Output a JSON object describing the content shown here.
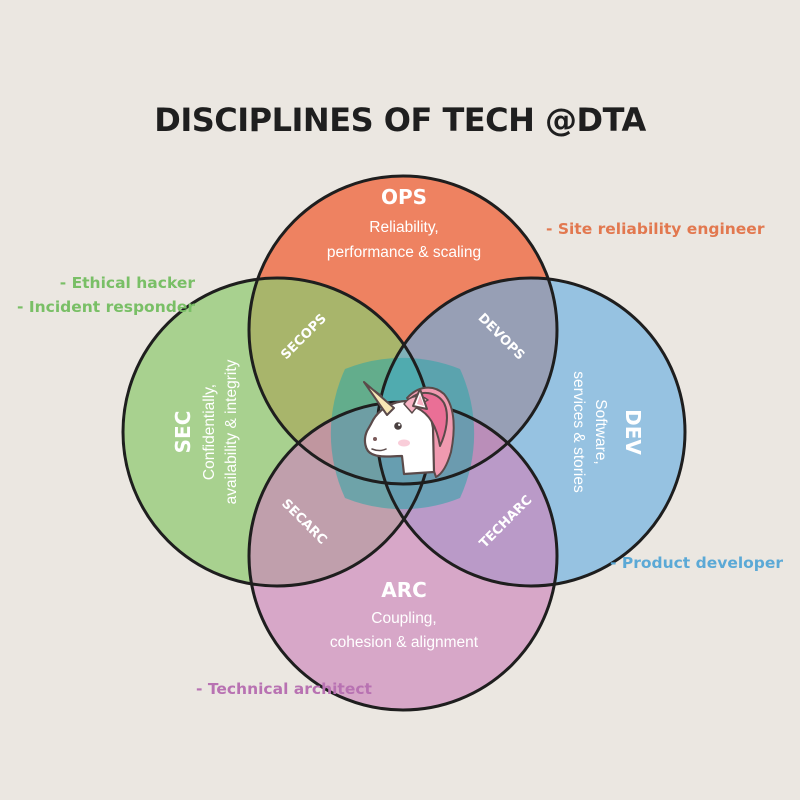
{
  "title": "DISCIPLINES OF TECH @DTA",
  "colors": {
    "background": "#ebe7e1",
    "ops": "#ee7a57",
    "sec": "#8ec96f",
    "dev": "#72b2da",
    "arc": "#cd86ba",
    "ops_role": "#e2784f",
    "sec_role": "#79bf66",
    "dev_role": "#5ba9d6",
    "arc_role": "#b872b2"
  },
  "disciplines": {
    "ops": {
      "name": "OPS",
      "desc": [
        "Reliability,",
        "performance & scaling"
      ]
    },
    "sec": {
      "name": "SEC",
      "desc": [
        "Confidentially,",
        "availability & integrity"
      ]
    },
    "dev": {
      "name": "DEV",
      "desc": [
        "Software,",
        "services & stories"
      ]
    },
    "arc": {
      "name": "ARC",
      "desc": [
        "Coupling,",
        "cohesion & alignment"
      ]
    }
  },
  "overlaps": {
    "secops": "SECOPS",
    "devops": "DEVOPS",
    "secarc": "SECARC",
    "techarc": "TECHARC"
  },
  "roles": {
    "ops": "- Site reliability engineer",
    "sec": [
      "- Ethical hacker",
      "- Incident responder"
    ],
    "dev": "- Product developer",
    "arc": "- Technical architect"
  },
  "center_icon": "unicorn-icon"
}
